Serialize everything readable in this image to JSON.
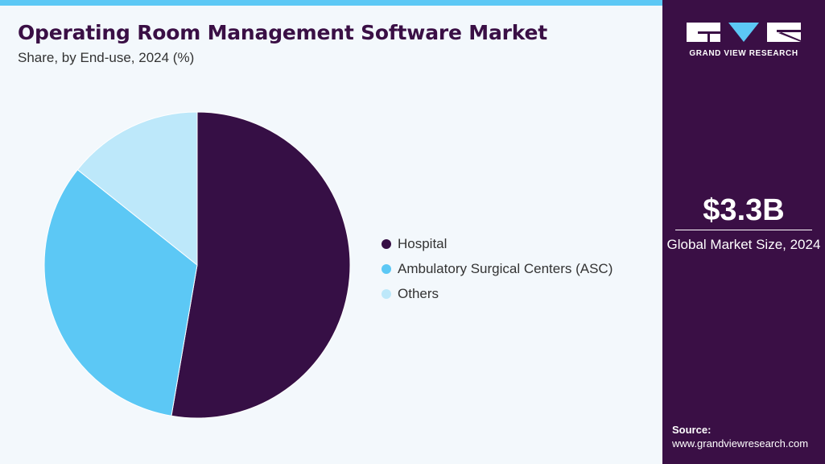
{
  "header": {
    "title": "Operating Room Management Software Market",
    "subtitle": "Share, by End-use, 2024 (%)"
  },
  "colors": {
    "hospital": "#360f45",
    "asc": "#5cc8f5",
    "others": "#bde8fa",
    "sidebar": "#3a0f45",
    "accent_bar": "#5cc8f5",
    "background": "#f3f8fc"
  },
  "chart_data": {
    "type": "pie",
    "title": "Operating Room Management Software Market",
    "subtitle": "Share, by End-use, 2024 (%)",
    "categories": [
      "Hospital",
      "Ambulatory Surgical Centers (ASC)",
      "Others"
    ],
    "values": [
      52.7,
      33.0,
      14.3
    ],
    "colors": [
      "#360f45",
      "#5cc8f5",
      "#bde8fa"
    ],
    "legend_position": "right",
    "data_labels": false
  },
  "sidebar": {
    "logo_text": "GRAND VIEW RESEARCH",
    "market_size_value": "$3.3B",
    "market_size_label": "Global Market Size, 2024",
    "source_label": "Source:",
    "source_url": "www.grandviewresearch.com"
  }
}
